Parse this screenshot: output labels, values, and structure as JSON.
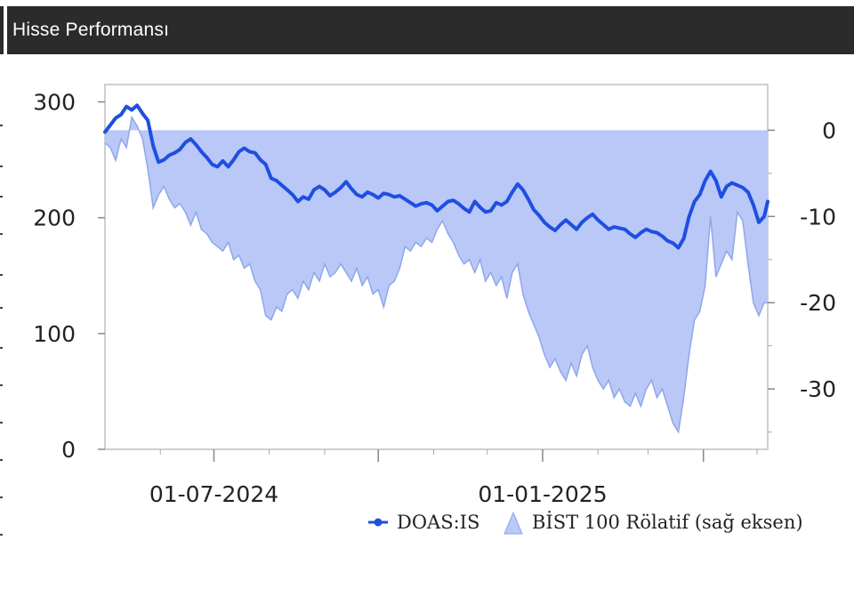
{
  "header": {
    "title": "Hisse Performansı"
  },
  "colors": {
    "header_bg": "#2b2b2b",
    "price_line": "#1f4fe0",
    "relative_fill": "#b9c8f7",
    "relative_stroke": "#8fa6ea",
    "plot_border": "#cfcfcf"
  },
  "chart_data": {
    "type": "line",
    "x_axis": {
      "type": "date",
      "range": [
        "2024-05-01",
        "2025-05-07"
      ],
      "tick_labels": [
        "01-07-2024",
        "01-01-2025"
      ],
      "tick_dates": [
        "2024-07-01",
        "2025-01-01"
      ]
    },
    "y_axis_left": {
      "range": [
        0,
        315
      ],
      "ticks": [
        0,
        100,
        200,
        300
      ]
    },
    "y_axis_right": {
      "range": [
        -37,
        5.3
      ],
      "ticks": [
        0,
        -10,
        -20,
        -30
      ]
    },
    "grid": false,
    "legend": {
      "position": "bottom-right"
    },
    "series": [
      {
        "name": "DOAS:IS",
        "type": "line",
        "axis": "left",
        "points": [
          [
            "2024-05-01",
            274
          ],
          [
            "2024-05-04",
            280
          ],
          [
            "2024-05-07",
            286
          ],
          [
            "2024-05-10",
            289
          ],
          [
            "2024-05-13",
            296
          ],
          [
            "2024-05-16",
            293
          ],
          [
            "2024-05-19",
            297
          ],
          [
            "2024-05-22",
            290
          ],
          [
            "2024-05-25",
            284
          ],
          [
            "2024-05-28",
            262
          ],
          [
            "2024-05-31",
            248
          ],
          [
            "2024-06-03",
            250
          ],
          [
            "2024-06-06",
            254
          ],
          [
            "2024-06-09",
            256
          ],
          [
            "2024-06-12",
            259
          ],
          [
            "2024-06-15",
            265
          ],
          [
            "2024-06-18",
            268
          ],
          [
            "2024-06-21",
            263
          ],
          [
            "2024-06-24",
            257
          ],
          [
            "2024-06-27",
            252
          ],
          [
            "2024-06-30",
            246
          ],
          [
            "2024-07-03",
            244
          ],
          [
            "2024-07-06",
            249
          ],
          [
            "2024-07-09",
            244
          ],
          [
            "2024-07-12",
            250
          ],
          [
            "2024-07-15",
            257
          ],
          [
            "2024-07-18",
            260
          ],
          [
            "2024-07-21",
            257
          ],
          [
            "2024-07-24",
            256
          ],
          [
            "2024-07-27",
            250
          ],
          [
            "2024-07-30",
            246
          ],
          [
            "2024-08-02",
            234
          ],
          [
            "2024-08-05",
            232
          ],
          [
            "2024-08-08",
            228
          ],
          [
            "2024-08-11",
            224
          ],
          [
            "2024-08-14",
            220
          ],
          [
            "2024-08-17",
            214
          ],
          [
            "2024-08-20",
            218
          ],
          [
            "2024-08-23",
            216
          ],
          [
            "2024-08-26",
            224
          ],
          [
            "2024-08-29",
            227
          ],
          [
            "2024-09-01",
            224
          ],
          [
            "2024-09-04",
            219
          ],
          [
            "2024-09-07",
            222
          ],
          [
            "2024-09-10",
            226
          ],
          [
            "2024-09-13",
            231
          ],
          [
            "2024-09-16",
            225
          ],
          [
            "2024-09-19",
            220
          ],
          [
            "2024-09-22",
            218
          ],
          [
            "2024-09-25",
            222
          ],
          [
            "2024-09-28",
            220
          ],
          [
            "2024-10-01",
            217
          ],
          [
            "2024-10-04",
            221
          ],
          [
            "2024-10-07",
            220
          ],
          [
            "2024-10-10",
            218
          ],
          [
            "2024-10-13",
            219
          ],
          [
            "2024-10-16",
            216
          ],
          [
            "2024-10-19",
            213
          ],
          [
            "2024-10-22",
            210
          ],
          [
            "2024-10-25",
            212
          ],
          [
            "2024-10-28",
            213
          ],
          [
            "2024-10-31",
            211
          ],
          [
            "2024-11-03",
            206
          ],
          [
            "2024-11-06",
            210
          ],
          [
            "2024-11-09",
            214
          ],
          [
            "2024-11-12",
            215
          ],
          [
            "2024-11-15",
            212
          ],
          [
            "2024-11-18",
            208
          ],
          [
            "2024-11-21",
            205
          ],
          [
            "2024-11-24",
            214
          ],
          [
            "2024-11-27",
            209
          ],
          [
            "2024-11-30",
            205
          ],
          [
            "2024-12-03",
            206
          ],
          [
            "2024-12-06",
            213
          ],
          [
            "2024-12-09",
            211
          ],
          [
            "2024-12-12",
            214
          ],
          [
            "2024-12-15",
            222
          ],
          [
            "2024-12-18",
            229
          ],
          [
            "2024-12-21",
            224
          ],
          [
            "2024-12-24",
            216
          ],
          [
            "2024-12-27",
            207
          ],
          [
            "2024-12-30",
            202
          ],
          [
            "2025-01-02",
            196
          ],
          [
            "2025-01-05",
            192
          ],
          [
            "2025-01-08",
            189
          ],
          [
            "2025-01-11",
            194
          ],
          [
            "2025-01-14",
            198
          ],
          [
            "2025-01-17",
            194
          ],
          [
            "2025-01-20",
            190
          ],
          [
            "2025-01-23",
            196
          ],
          [
            "2025-01-26",
            200
          ],
          [
            "2025-01-29",
            203
          ],
          [
            "2025-02-01",
            198
          ],
          [
            "2025-02-04",
            194
          ],
          [
            "2025-02-07",
            190
          ],
          [
            "2025-02-10",
            192
          ],
          [
            "2025-02-13",
            191
          ],
          [
            "2025-02-16",
            190
          ],
          [
            "2025-02-19",
            186
          ],
          [
            "2025-02-22",
            183
          ],
          [
            "2025-02-25",
            187
          ],
          [
            "2025-02-28",
            190
          ],
          [
            "2025-03-03",
            188
          ],
          [
            "2025-03-06",
            187
          ],
          [
            "2025-03-09",
            184
          ],
          [
            "2025-03-12",
            180
          ],
          [
            "2025-03-15",
            178
          ],
          [
            "2025-03-18",
            174
          ],
          [
            "2025-03-21",
            182
          ],
          [
            "2025-03-24",
            201
          ],
          [
            "2025-03-27",
            214
          ],
          [
            "2025-03-30",
            220
          ],
          [
            "2025-04-02",
            232
          ],
          [
            "2025-04-05",
            240
          ],
          [
            "2025-04-08",
            232
          ],
          [
            "2025-04-11",
            218
          ],
          [
            "2025-04-14",
            227
          ],
          [
            "2025-04-17",
            230
          ],
          [
            "2025-04-20",
            228
          ],
          [
            "2025-04-23",
            226
          ],
          [
            "2025-04-26",
            222
          ],
          [
            "2025-04-29",
            211
          ],
          [
            "2025-05-02",
            196
          ],
          [
            "2025-05-05",
            201
          ],
          [
            "2025-05-07",
            214
          ]
        ]
      },
      {
        "name": "BİST 100 Rölatif (sağ eksen)",
        "type": "area",
        "axis": "right",
        "baseline": 0,
        "points": [
          [
            "2024-05-01",
            -1.5
          ],
          [
            "2024-05-04",
            -2.0
          ],
          [
            "2024-05-07",
            -3.5
          ],
          [
            "2024-05-10",
            -1.0
          ],
          [
            "2024-05-13",
            -2.0
          ],
          [
            "2024-05-16",
            1.5
          ],
          [
            "2024-05-19",
            0.5
          ],
          [
            "2024-05-22",
            -1.0
          ],
          [
            "2024-05-25",
            -4.5
          ],
          [
            "2024-05-28",
            -9.0
          ],
          [
            "2024-05-31",
            -7.5
          ],
          [
            "2024-06-03",
            -6.5
          ],
          [
            "2024-06-06",
            -8.0
          ],
          [
            "2024-06-09",
            -9.0
          ],
          [
            "2024-06-12",
            -8.5
          ],
          [
            "2024-06-15",
            -9.5
          ],
          [
            "2024-06-18",
            -11.0
          ],
          [
            "2024-06-21",
            -9.5
          ],
          [
            "2024-06-24",
            -11.5
          ],
          [
            "2024-06-27",
            -12.0
          ],
          [
            "2024-06-30",
            -13.0
          ],
          [
            "2024-07-03",
            -13.5
          ],
          [
            "2024-07-06",
            -14.0
          ],
          [
            "2024-07-09",
            -13.0
          ],
          [
            "2024-07-12",
            -15.0
          ],
          [
            "2024-07-15",
            -14.5
          ],
          [
            "2024-07-18",
            -16.0
          ],
          [
            "2024-07-21",
            -15.5
          ],
          [
            "2024-07-24",
            -17.5
          ],
          [
            "2024-07-27",
            -18.5
          ],
          [
            "2024-07-30",
            -21.5
          ],
          [
            "2024-08-02",
            -22.0
          ],
          [
            "2024-08-05",
            -20.5
          ],
          [
            "2024-08-08",
            -21.0
          ],
          [
            "2024-08-11",
            -19.0
          ],
          [
            "2024-08-14",
            -18.5
          ],
          [
            "2024-08-17",
            -19.5
          ],
          [
            "2024-08-20",
            -17.5
          ],
          [
            "2024-08-23",
            -18.5
          ],
          [
            "2024-08-26",
            -16.5
          ],
          [
            "2024-08-29",
            -17.5
          ],
          [
            "2024-09-01",
            -15.5
          ],
          [
            "2024-09-04",
            -17.0
          ],
          [
            "2024-09-07",
            -16.5
          ],
          [
            "2024-09-10",
            -15.5
          ],
          [
            "2024-09-13",
            -16.5
          ],
          [
            "2024-09-16",
            -17.5
          ],
          [
            "2024-09-19",
            -16.0
          ],
          [
            "2024-09-22",
            -18.0
          ],
          [
            "2024-09-25",
            -17.0
          ],
          [
            "2024-09-28",
            -19.0
          ],
          [
            "2024-10-01",
            -18.5
          ],
          [
            "2024-10-04",
            -20.5
          ],
          [
            "2024-10-07",
            -18.0
          ],
          [
            "2024-10-10",
            -17.5
          ],
          [
            "2024-10-13",
            -16.0
          ],
          [
            "2024-10-16",
            -13.5
          ],
          [
            "2024-10-19",
            -14.0
          ],
          [
            "2024-10-22",
            -13.0
          ],
          [
            "2024-10-25",
            -13.5
          ],
          [
            "2024-10-28",
            -12.5
          ],
          [
            "2024-10-31",
            -13.0
          ],
          [
            "2024-11-03",
            -11.5
          ],
          [
            "2024-11-06",
            -10.5
          ],
          [
            "2024-11-09",
            -12.0
          ],
          [
            "2024-11-12",
            -13.0
          ],
          [
            "2024-11-15",
            -14.5
          ],
          [
            "2024-11-18",
            -15.5
          ],
          [
            "2024-11-21",
            -15.0
          ],
          [
            "2024-11-24",
            -16.5
          ],
          [
            "2024-11-27",
            -15.0
          ],
          [
            "2024-11-30",
            -17.5
          ],
          [
            "2024-12-03",
            -16.5
          ],
          [
            "2024-12-06",
            -18.0
          ],
          [
            "2024-12-09",
            -17.0
          ],
          [
            "2024-12-12",
            -19.5
          ],
          [
            "2024-12-15",
            -16.5
          ],
          [
            "2024-12-18",
            -15.5
          ],
          [
            "2024-12-21",
            -19.0
          ],
          [
            "2024-12-24",
            -21.0
          ],
          [
            "2024-12-27",
            -22.5
          ],
          [
            "2024-12-30",
            -24.0
          ],
          [
            "2025-01-02",
            -26.0
          ],
          [
            "2025-01-05",
            -27.5
          ],
          [
            "2025-01-08",
            -26.5
          ],
          [
            "2025-01-11",
            -28.0
          ],
          [
            "2025-01-14",
            -29.0
          ],
          [
            "2025-01-17",
            -27.0
          ],
          [
            "2025-01-20",
            -28.5
          ],
          [
            "2025-01-23",
            -26.0
          ],
          [
            "2025-01-26",
            -25.0
          ],
          [
            "2025-01-29",
            -27.5
          ],
          [
            "2025-02-01",
            -29.0
          ],
          [
            "2025-02-04",
            -30.0
          ],
          [
            "2025-02-07",
            -29.0
          ],
          [
            "2025-02-10",
            -31.0
          ],
          [
            "2025-02-13",
            -30.0
          ],
          [
            "2025-02-16",
            -31.5
          ],
          [
            "2025-02-19",
            -32.0
          ],
          [
            "2025-02-22",
            -30.5
          ],
          [
            "2025-02-25",
            -32.0
          ],
          [
            "2025-02-28",
            -30.0
          ],
          [
            "2025-03-03",
            -29.0
          ],
          [
            "2025-03-06",
            -31.0
          ],
          [
            "2025-03-09",
            -30.0
          ],
          [
            "2025-03-12",
            -32.0
          ],
          [
            "2025-03-15",
            -34.0
          ],
          [
            "2025-03-18",
            -35.0
          ],
          [
            "2025-03-21",
            -31.0
          ],
          [
            "2025-03-24",
            -26.0
          ],
          [
            "2025-03-27",
            -22.0
          ],
          [
            "2025-03-30",
            -21.0
          ],
          [
            "2025-04-02",
            -18.0
          ],
          [
            "2025-04-05",
            -10.0
          ],
          [
            "2025-04-08",
            -17.0
          ],
          [
            "2025-04-11",
            -15.5
          ],
          [
            "2025-04-14",
            -14.0
          ],
          [
            "2025-04-17",
            -15.0
          ],
          [
            "2025-04-20",
            -9.5
          ],
          [
            "2025-04-23",
            -10.5
          ],
          [
            "2025-04-26",
            -15.5
          ],
          [
            "2025-04-29",
            -20.0
          ],
          [
            "2025-05-02",
            -21.5
          ],
          [
            "2025-05-05",
            -20.0
          ],
          [
            "2025-05-07",
            -20.0
          ]
        ]
      }
    ]
  }
}
